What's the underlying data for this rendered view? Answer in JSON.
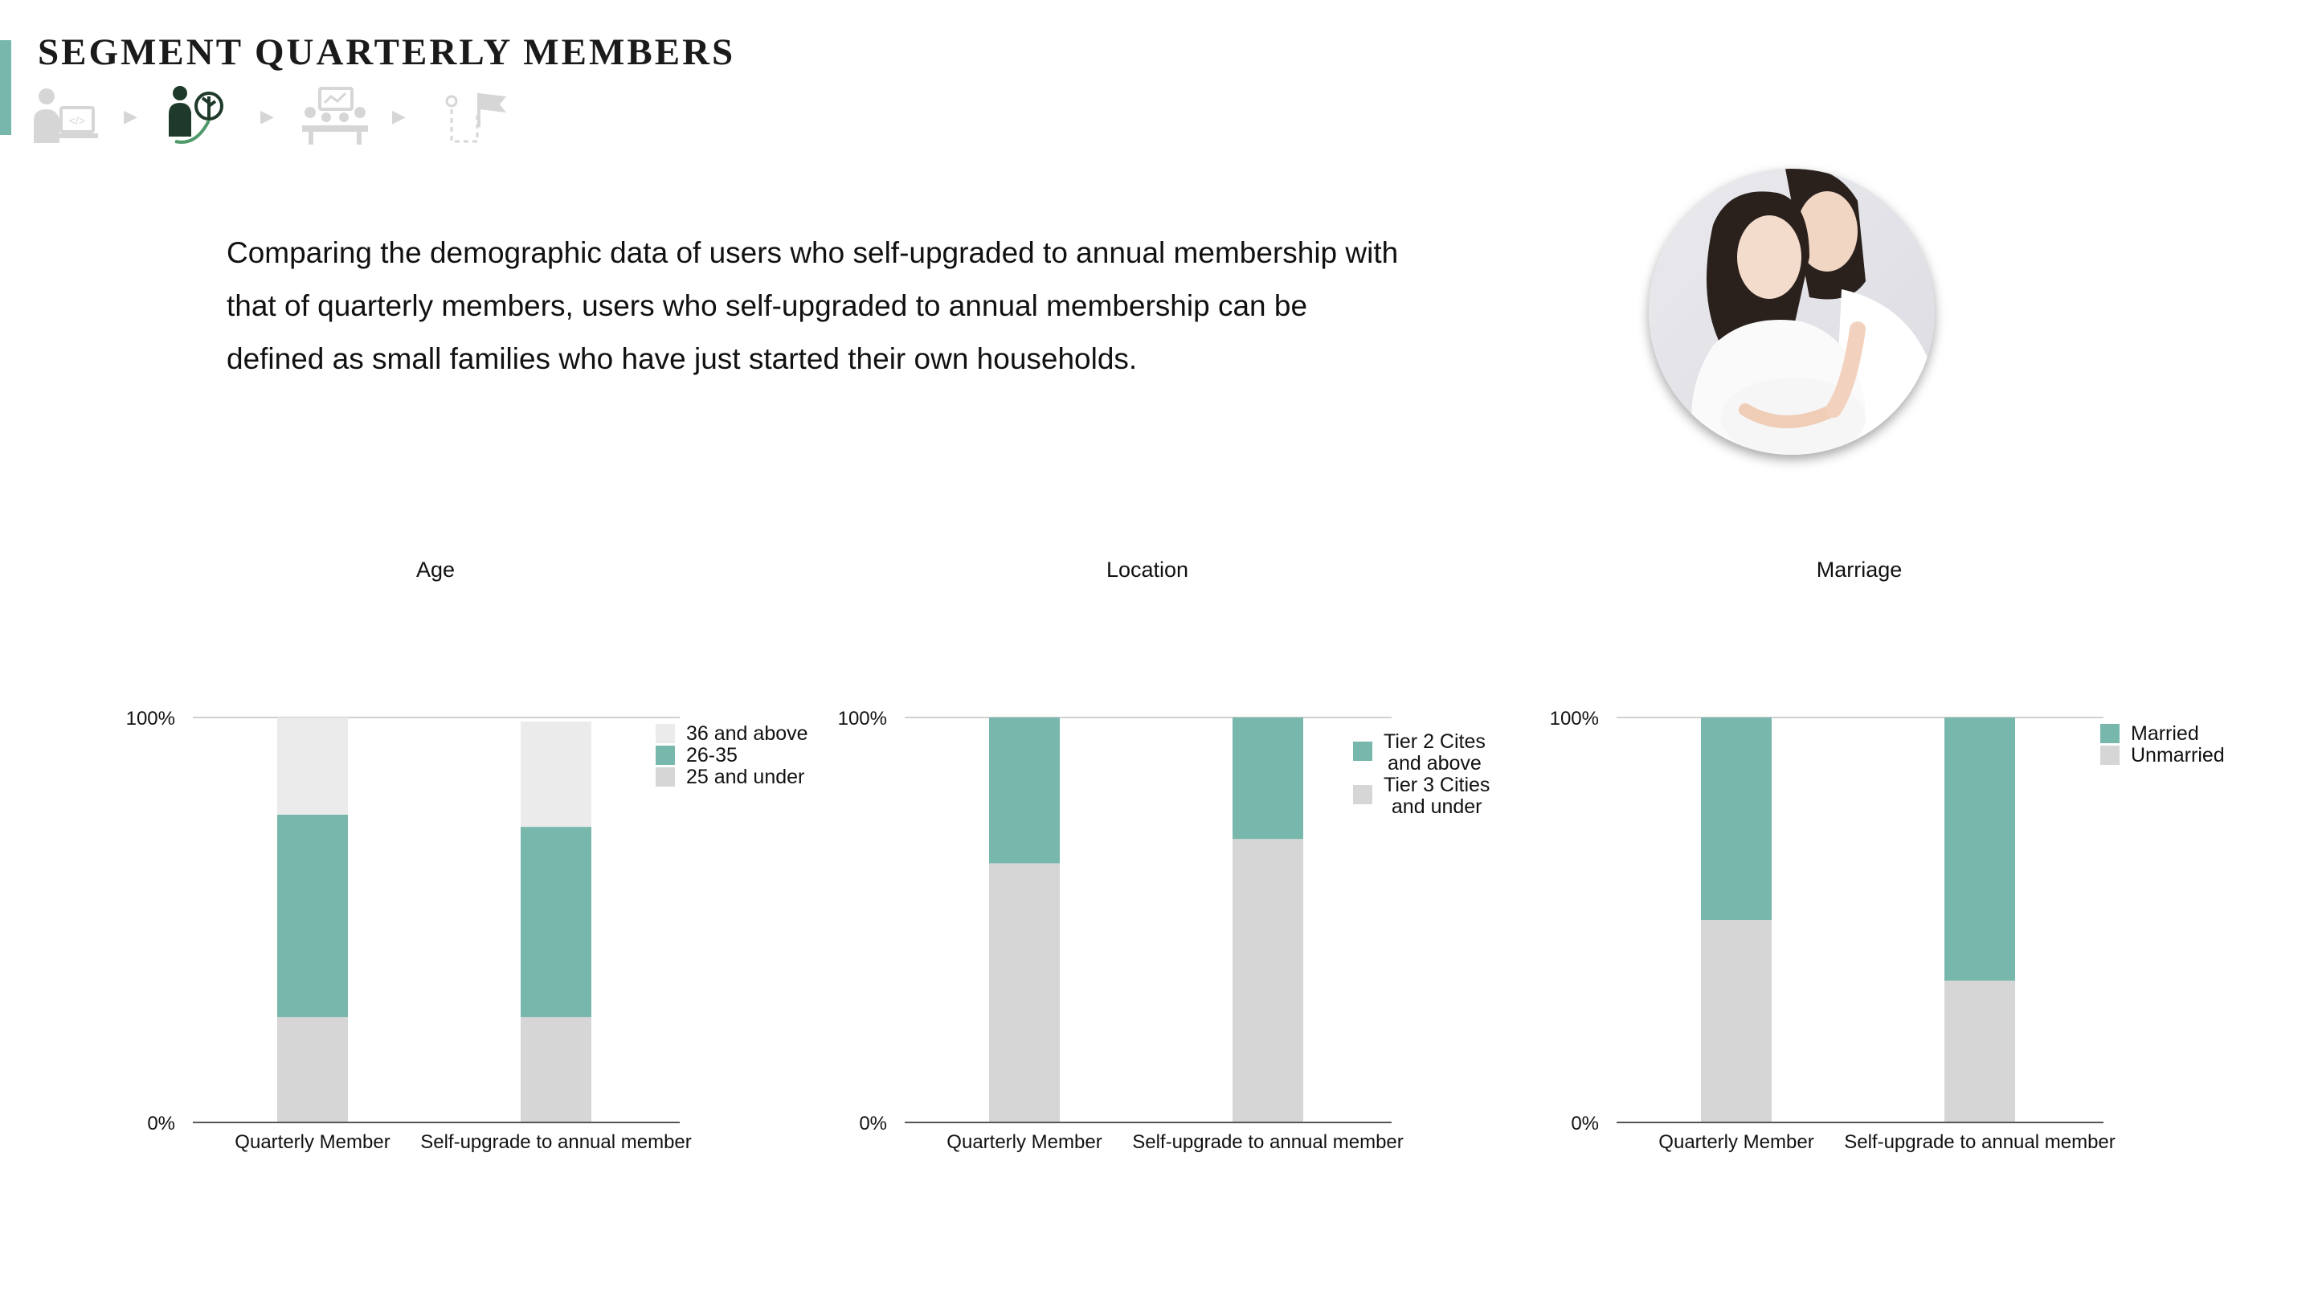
{
  "header": {
    "title": "SEGMENT QUARTERLY MEMBERS"
  },
  "steps": [
    {
      "icon": "developer-at-computer-icon",
      "state": "inactive"
    },
    {
      "icon": "person-with-growth-plant-icon",
      "state": "active"
    },
    {
      "icon": "team-meeting-presentation-icon",
      "state": "inactive"
    },
    {
      "icon": "path-to-goal-flag-icon",
      "state": "inactive"
    }
  ],
  "description": "Comparing the demographic data of users who self-upgraded to annual membership with that of quarterly members, users who self-upgraded to annual membership can be defined as small families who have just started their own households.",
  "photo": {
    "icon": "expecting-couple-photo"
  },
  "colors": {
    "accent": "#78b7ac",
    "light_gray": "#d6d6d6",
    "lighter_gray": "#ebebeb",
    "axis": "#555555"
  },
  "chart_data": [
    {
      "type": "bar",
      "stacked": true,
      "title": "Age",
      "categories": [
        "Quarterly Member",
        "Self-upgrade to annual member"
      ],
      "yticks": [
        "0%",
        "100%"
      ],
      "ylim": [
        0,
        100
      ],
      "legend_position": "top-right",
      "series": [
        {
          "name": "25 and under",
          "values": [
            26,
            26
          ],
          "color": "#d6d6d6"
        },
        {
          "name": "26-35",
          "values": [
            50,
            47
          ],
          "color": "#78b7ac"
        },
        {
          "name": "36 and above",
          "values": [
            24,
            26
          ],
          "color": "#ebebeb"
        }
      ]
    },
    {
      "type": "bar",
      "stacked": true,
      "title": "Location",
      "categories": [
        "Quarterly Member",
        "Self-upgrade to annual member"
      ],
      "yticks": [
        "0%",
        "100%"
      ],
      "ylim": [
        0,
        100
      ],
      "legend_position": "top-right",
      "series": [
        {
          "name": "Tier 3 Cities and under",
          "legend_lines": [
            "Tier 3 Cities",
            "and under"
          ],
          "values": [
            64,
            70
          ],
          "color": "#d6d6d6"
        },
        {
          "name": "Tier 2 Cites and above",
          "legend_lines": [
            "Tier 2 Cites",
            "and above"
          ],
          "values": [
            36,
            30
          ],
          "color": "#78b7ac"
        }
      ]
    },
    {
      "type": "bar",
      "stacked": true,
      "title": "Marriage",
      "categories": [
        "Quarterly Member",
        "Self-upgrade to annual member"
      ],
      "yticks": [
        "0%",
        "100%"
      ],
      "ylim": [
        0,
        100
      ],
      "legend_position": "top-right",
      "series": [
        {
          "name": "Unmarried",
          "values": [
            50,
            35
          ],
          "color": "#d6d6d6"
        },
        {
          "name": "Married",
          "values": [
            50,
            65
          ],
          "color": "#78b7ac"
        }
      ]
    }
  ]
}
